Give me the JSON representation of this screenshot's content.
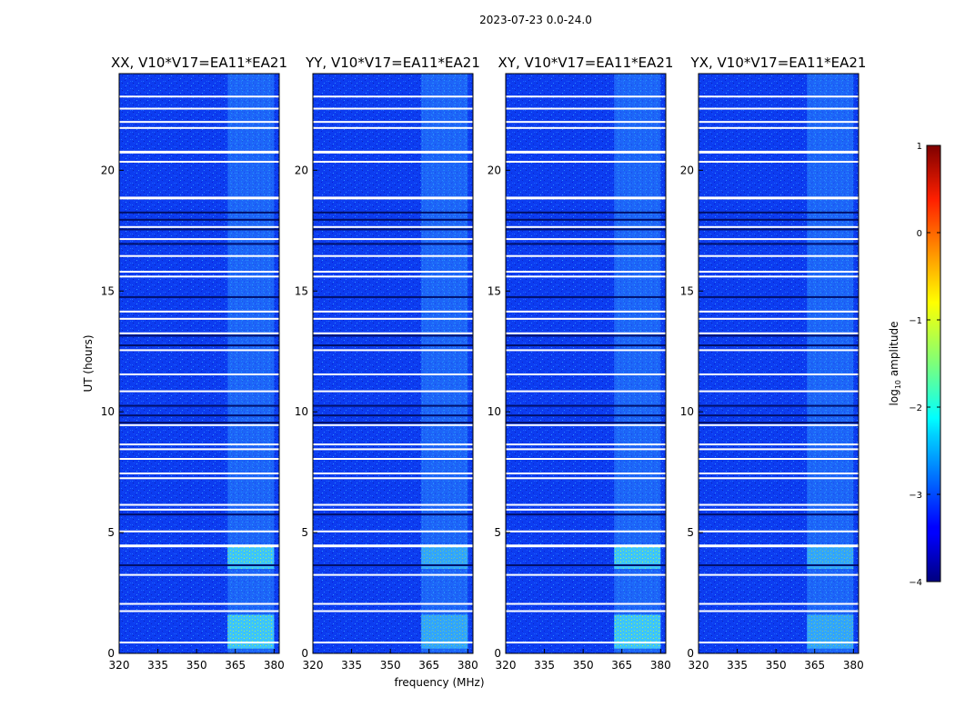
{
  "chart_data": {
    "type": "heatmap",
    "suptitle": "2023-07-23 0.0-24.0",
    "xlabel": "frequency (MHz)",
    "ylabel": "UT (hours)",
    "xlim": [
      320,
      382
    ],
    "ylim": [
      0,
      24
    ],
    "xticks": [
      320,
      335,
      350,
      365,
      380
    ],
    "yticks": [
      0,
      5,
      10,
      15,
      20
    ],
    "panels": [
      {
        "title": "XX, V10*V17=EA11*EA21",
        "pol": "XX"
      },
      {
        "title": "YY, V10*V17=EA11*EA21",
        "pol": "YY"
      },
      {
        "title": "XY, V10*V17=EA11*EA21",
        "pol": "XY"
      },
      {
        "title": "YX, V10*V17=EA11*EA21",
        "pol": "YX"
      }
    ],
    "colorbar": {
      "label_prefix": "log",
      "label_sub": "10",
      "label_suffix": " amplitude",
      "min": -4,
      "max": 1,
      "ticks": [
        1,
        0,
        -1,
        -2,
        -3,
        -4
      ],
      "tick_labels": [
        "1",
        "0",
        "−1",
        "−2",
        "−3",
        "−4"
      ],
      "colormap": "jet"
    },
    "flagged_ut_hours": [
      23.05,
      22.55,
      22.0,
      21.75,
      20.75,
      20.35,
      18.85,
      17.65,
      17.15,
      16.45,
      15.8,
      15.6,
      14.15,
      13.85,
      13.25,
      12.55,
      11.55,
      10.85,
      9.45,
      8.65,
      8.45,
      8.05,
      7.45,
      7.25,
      6.15,
      5.95,
      5.05,
      4.45,
      3.25,
      2.05,
      1.75,
      0.45
    ],
    "dark_ut_hours": [
      18.25,
      17.95,
      17.55,
      16.95,
      14.75,
      13.15,
      12.75,
      10.25,
      9.85,
      9.55,
      5.75,
      3.65
    ],
    "enhanced_band_mhz": [
      362,
      380
    ],
    "enhanced_ut_ranges": [
      [
        0.2,
        1.6
      ],
      [
        3.5,
        4.5
      ]
    ]
  }
}
